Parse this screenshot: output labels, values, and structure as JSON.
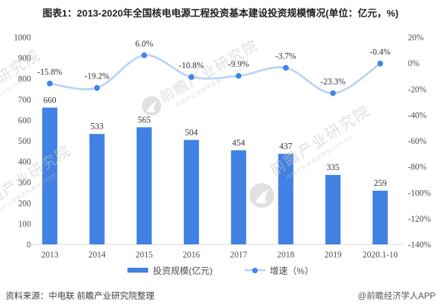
{
  "title": "图表1：2013-2020年全国核电电源工程投资基本建设投资规模情况(单位：亿元，%)",
  "chart_data": {
    "type": "bar+line combo",
    "categories": [
      "2013",
      "2014",
      "2015",
      "2016",
      "2017",
      "2018",
      "2019",
      "2020.1-10"
    ],
    "series": [
      {
        "name": "投资规模(亿元)",
        "type": "bar",
        "axis": "left",
        "color": "#4181E2",
        "values": [
          660,
          533,
          565,
          504,
          454,
          437,
          335,
          259
        ],
        "labels": [
          "660",
          "533",
          "565",
          "504",
          "454",
          "437",
          "335",
          "259"
        ]
      },
      {
        "name": "增速（%）",
        "type": "line",
        "axis": "right",
        "line_color": "#BAD5F3",
        "marker_color": "#4285E8",
        "values": [
          -15.8,
          -19.2,
          6.0,
          -10.8,
          -9.9,
          -3.7,
          -23.3,
          -0.4
        ],
        "labels": [
          "-15.8%",
          "-19.2%",
          "6.0%",
          "-10.8%",
          "-9.9%",
          "-3.7%",
          "-23.3%",
          "-0.4%"
        ]
      }
    ],
    "left_axis": {
      "min": 0,
      "max": 1000,
      "step": 100,
      "ticks": [
        "1000",
        "900",
        "800",
        "700",
        "600",
        "500",
        "400",
        "300",
        "200",
        "100",
        "0"
      ]
    },
    "right_axis": {
      "min": -140,
      "max": 20,
      "step": 20,
      "ticks": [
        "20%",
        "0%",
        "-20%",
        "-40%",
        "-60%",
        "-80%",
        "-100%",
        "-120%",
        "-140%"
      ]
    },
    "grid": false,
    "legend_position": "bottom",
    "axis_line_color": "#D9D9D9",
    "label_color": "#333333",
    "tick_color": "#4d4d4d"
  },
  "footer": {
    "source": "资料来源：中电联 前瞻产业研究院整理",
    "credit": "@前瞻经济学人APP"
  },
  "watermark": {
    "text": "前瞻产业研究院",
    "subtext": "中国产业咨询领导者(839599)",
    "color": "#c6c6c6"
  }
}
